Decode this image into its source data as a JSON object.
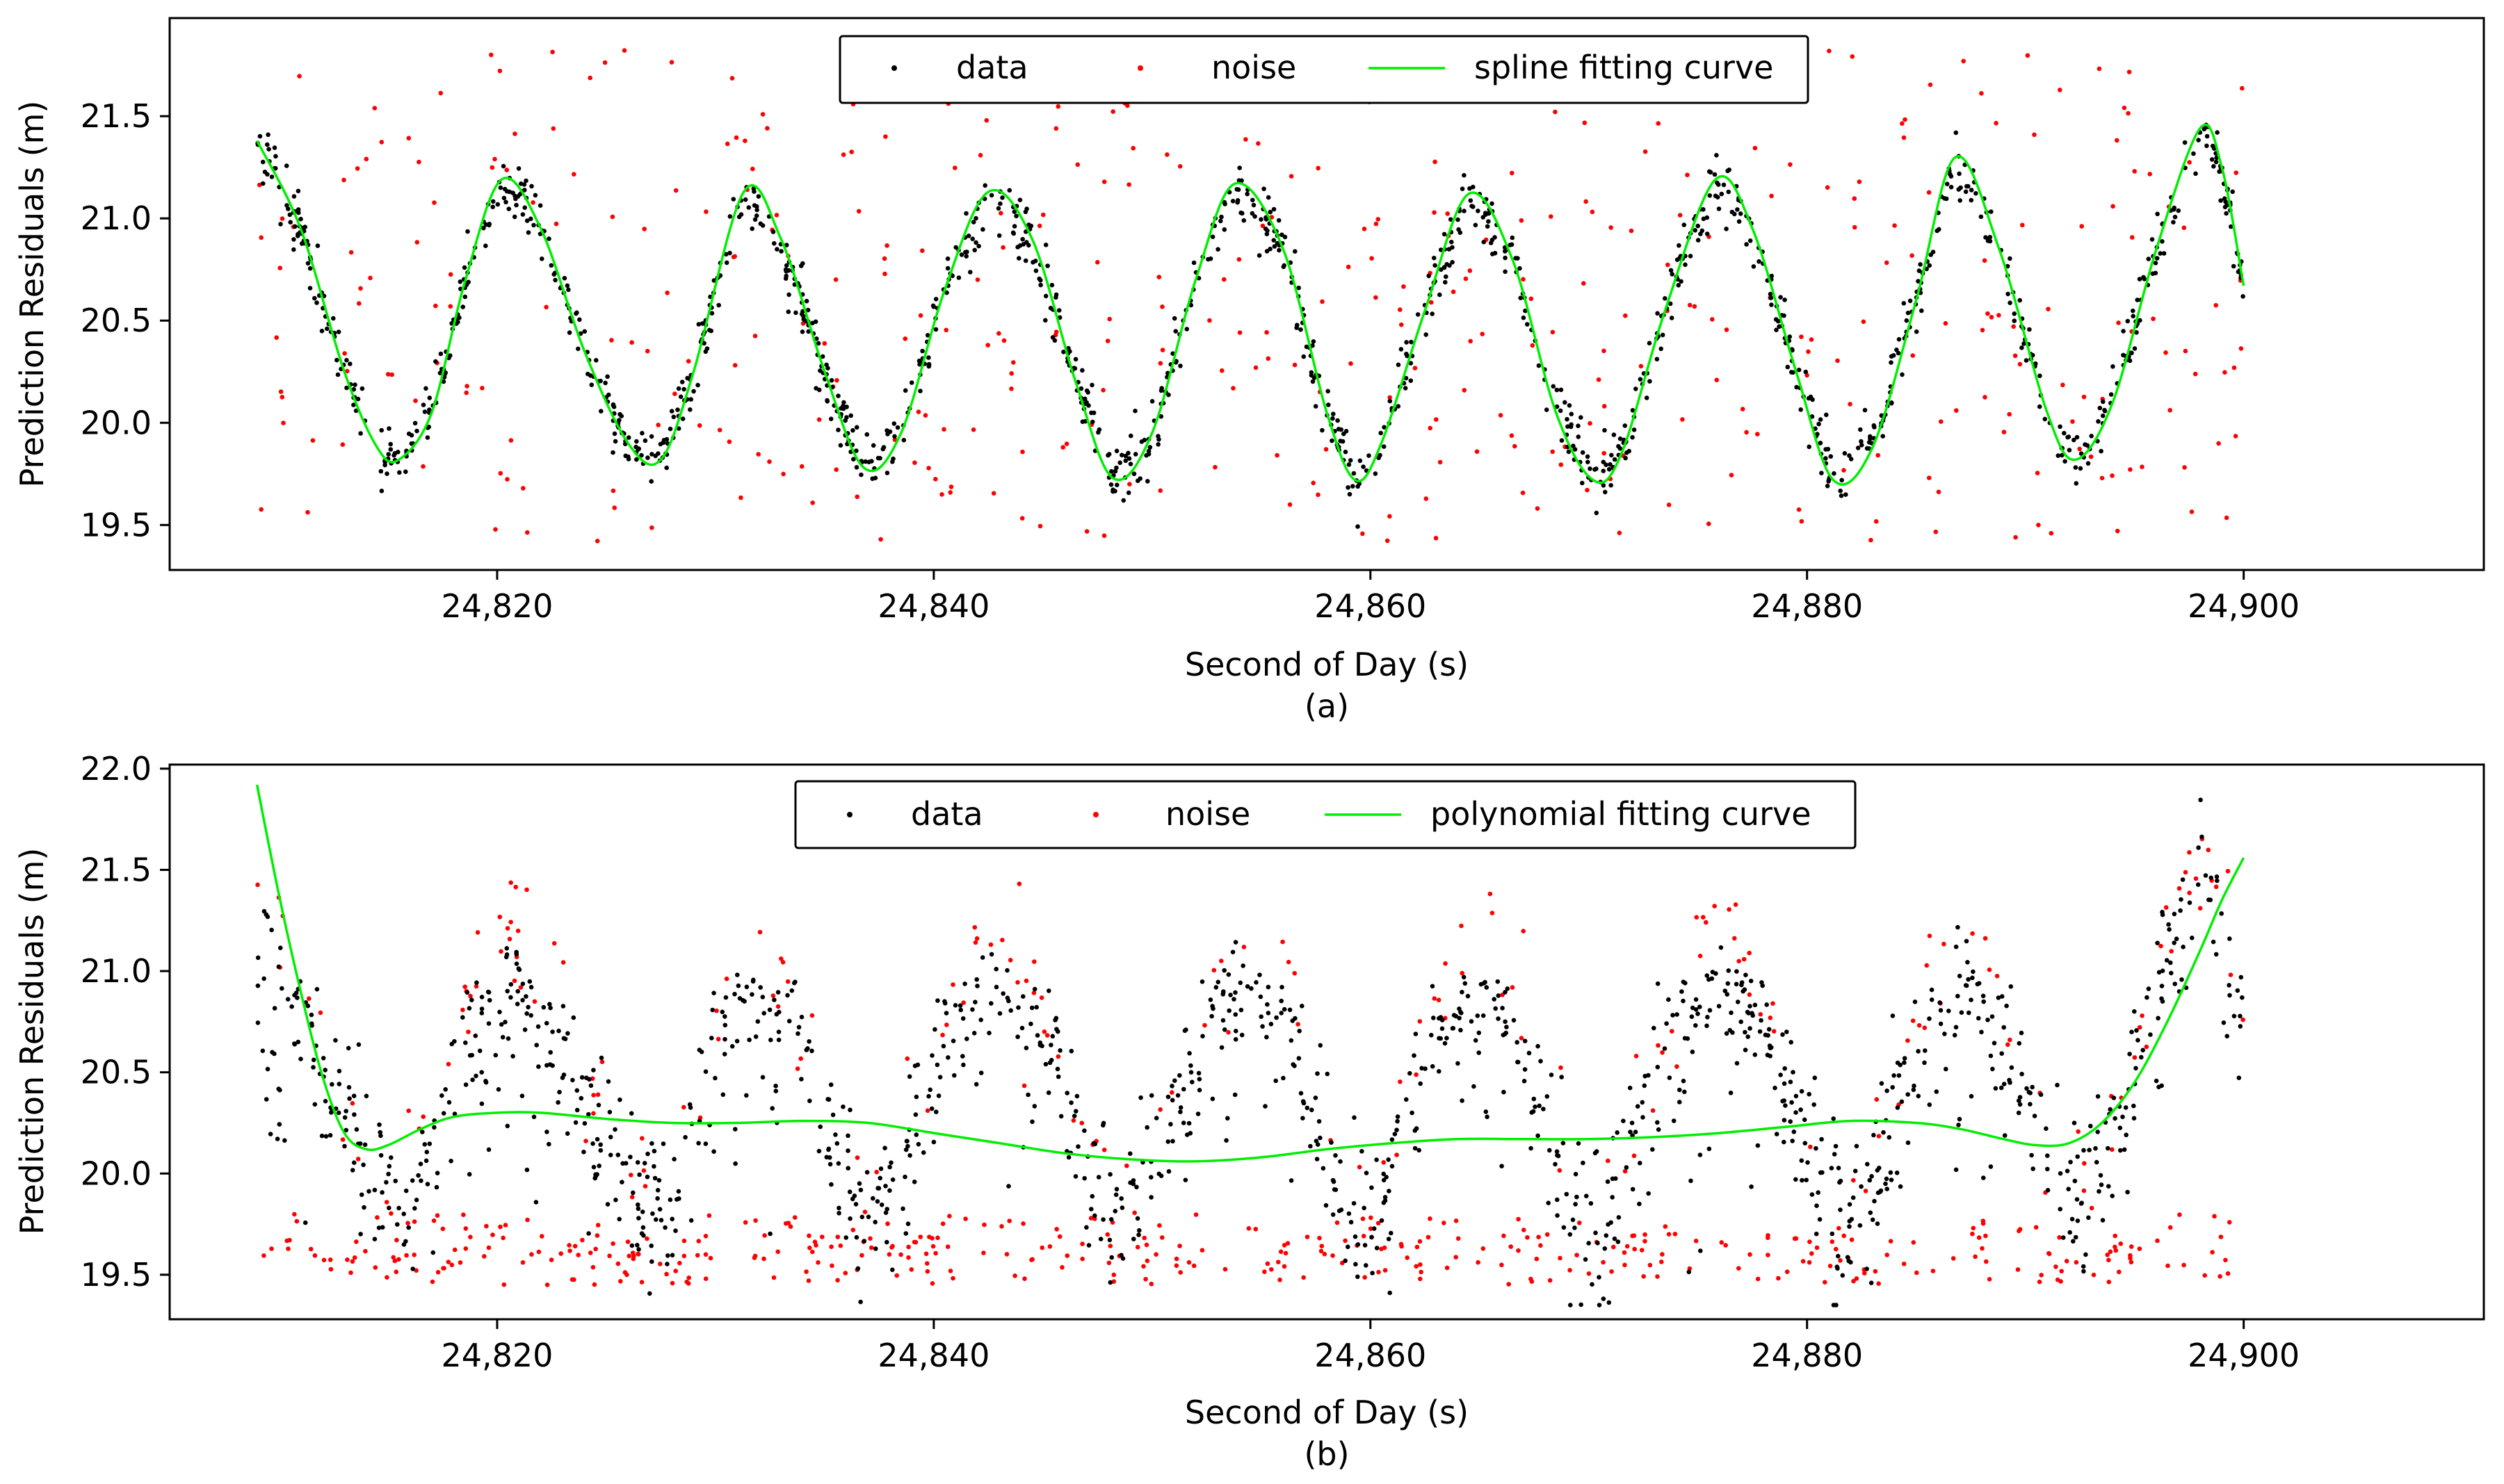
{
  "figure": {
    "caption_a": "(a)",
    "caption_b": "(b)"
  },
  "chart_data": [
    {
      "panel": "a",
      "type": "scatter",
      "title": "",
      "xlabel": "Second of Day (s)",
      "ylabel": "Prediction Residuals (m)",
      "xlim": [
        24805.0,
        24911.0
      ],
      "ylim": [
        19.28,
        21.98
      ],
      "xticks": [
        24820,
        24840,
        24860,
        24880,
        24900
      ],
      "xtick_labels": [
        "24,820",
        "24,840",
        "24,860",
        "24,880",
        "24,900"
      ],
      "yticks": [
        19.5,
        20.0,
        20.5,
        21.0,
        21.5
      ],
      "ytick_labels": [
        "19.5",
        "20.0",
        "20.5",
        "21.0",
        "21.5"
      ],
      "grid": false,
      "legend": {
        "placement": "top-center",
        "entries": [
          "data",
          "noise",
          "spline fitting curve"
        ]
      },
      "colors": {
        "data": "#000000",
        "noise": "#ff0000",
        "curve": "#00ee00"
      },
      "signal_model": {
        "description": "approx. sinusoidal residual pattern with period ~11.1 s",
        "mean": 20.45,
        "amplitude": 0.7,
        "period_s": 11.1,
        "peak_at_s": 24820.2,
        "x_start": 24809.0,
        "x_end": 24900.0
      },
      "series": [
        {
          "name": "spline fitting curve",
          "kind": "line",
          "x": [
            24809,
            24811,
            24813,
            24814.5,
            24815.5,
            24817,
            24818.5,
            24820.2,
            24822,
            24824,
            24826,
            24827.5,
            24829,
            24831.3,
            24833,
            24835,
            24836.8,
            24838.5,
            24840.5,
            24842.5,
            24844.5,
            24846.5,
            24848.2,
            24850,
            24852,
            24853.8,
            24856,
            24858,
            24859.3,
            24860.5,
            24862.5,
            24864.5,
            24866.5,
            24868.5,
            24870.2,
            24871.5,
            24873.5,
            24875.8,
            24877.5,
            24879.5,
            24881.2,
            24883,
            24885,
            24886.8,
            24888.8,
            24891,
            24892.3,
            24894,
            24896,
            24898,
            24899,
            24900
          ],
          "y": [
            21.38,
            20.95,
            20.25,
            19.88,
            19.82,
            20.05,
            20.68,
            21.19,
            20.95,
            20.35,
            19.9,
            19.82,
            20.25,
            21.13,
            20.9,
            20.25,
            19.78,
            19.95,
            20.65,
            21.13,
            20.9,
            20.2,
            19.73,
            19.95,
            20.7,
            21.17,
            20.85,
            20.05,
            19.72,
            19.9,
            20.55,
            21.12,
            20.8,
            20.05,
            19.72,
            19.85,
            20.55,
            21.19,
            20.95,
            20.25,
            19.72,
            19.88,
            20.6,
            21.3,
            20.85,
            20.05,
            19.82,
            20.1,
            20.85,
            21.44,
            21.25,
            20.67
          ]
        },
        {
          "name": "data",
          "kind": "scatter",
          "n_points": 1400,
          "note": "black points scattered tightly (~±0.1 m) around the curve"
        },
        {
          "name": "noise",
          "kind": "scatter",
          "n_points": 420,
          "note": "red outliers spread over 19.4–21.85 m"
        }
      ]
    },
    {
      "panel": "b",
      "type": "scatter",
      "title": "",
      "xlabel": "Second of Day (s)",
      "ylabel": "Prediction Residuals (m)",
      "xlim": [
        24805.0,
        24911.0
      ],
      "ylim": [
        19.28,
        22.02
      ],
      "xticks": [
        24820,
        24840,
        24860,
        24880,
        24900
      ],
      "xtick_labels": [
        "24,820",
        "24,840",
        "24,860",
        "24,880",
        "24,900"
      ],
      "yticks": [
        19.5,
        20.0,
        20.5,
        21.0,
        21.5,
        22.0
      ],
      "ytick_labels": [
        "19.5",
        "20.0",
        "20.5",
        "21.0",
        "21.5",
        "22.0"
      ],
      "grid": false,
      "legend": {
        "placement": "top-center",
        "entries": [
          "data",
          "noise",
          "polynomial fitting curve"
        ]
      },
      "colors": {
        "data": "#000000",
        "noise": "#ff0000",
        "curve": "#00ee00"
      },
      "series": [
        {
          "name": "polynomial fitting curve",
          "kind": "line",
          "x": [
            24809,
            24810,
            24811,
            24812,
            24813,
            24814,
            24815,
            24816.5,
            24818,
            24820,
            24822,
            24825,
            24828,
            24831,
            24834,
            24837,
            24840,
            24843,
            24846,
            24849,
            24852,
            24855,
            24858,
            24861,
            24864,
            24867,
            24870,
            24873,
            24876,
            24879,
            24882,
            24885,
            24887,
            24889,
            24890.5,
            24892,
            24893.5,
            24895,
            24896.5,
            24898,
            24899,
            24900
          ],
          "y": [
            21.92,
            21.38,
            20.9,
            20.48,
            20.2,
            20.12,
            20.14,
            20.22,
            20.28,
            20.3,
            20.3,
            20.27,
            20.25,
            20.25,
            20.26,
            20.25,
            20.2,
            20.15,
            20.1,
            20.07,
            20.06,
            20.08,
            20.12,
            20.15,
            20.17,
            20.17,
            20.17,
            20.18,
            20.2,
            20.23,
            20.26,
            20.25,
            20.22,
            20.17,
            20.14,
            20.15,
            20.25,
            20.45,
            20.75,
            21.1,
            21.35,
            21.56
          ]
        },
        {
          "name": "data",
          "kind": "scatter",
          "n_points": 1300,
          "note": "black points with wider spread (~±0.25 m) around the oscillating signal"
        },
        {
          "name": "noise",
          "kind": "scatter",
          "n_points": 600,
          "note": "red points near crests and low outliers"
        }
      ]
    }
  ]
}
